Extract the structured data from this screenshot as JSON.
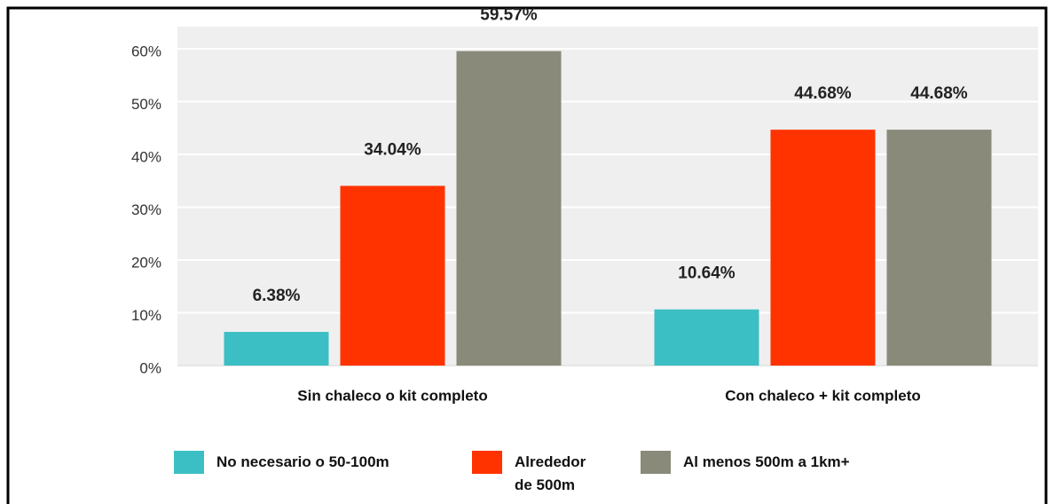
{
  "chart_data": {
    "type": "bar",
    "categories": [
      "Sin chaleco o kit completo",
      "Con chaleco + kit completo"
    ],
    "series": [
      {
        "name": "No necesario o 50-100m",
        "color": "#3cbfc4",
        "values": [
          6.38,
          10.64
        ],
        "value_labels": [
          "6.38%",
          "10.64%"
        ]
      },
      {
        "name": "Alrededor de 500m",
        "color": "#ff3300",
        "values": [
          34.04,
          44.68
        ],
        "value_labels": [
          "34.04%",
          "44.68%"
        ]
      },
      {
        "name": "Al menos 500m a 1km+",
        "color": "#8a8a7a",
        "values": [
          59.57,
          44.68
        ],
        "value_labels": [
          "59.57%",
          "44.68%"
        ]
      }
    ],
    "ylim": [
      0,
      60
    ],
    "yticks": [
      {
        "value": 0,
        "label": "0%"
      },
      {
        "value": 10,
        "label": "10%"
      },
      {
        "value": 20,
        "label": "20%"
      },
      {
        "value": 30,
        "label": "30%"
      },
      {
        "value": 40,
        "label": "40%"
      },
      {
        "value": 50,
        "label": "50%"
      },
      {
        "value": 60,
        "label": "60%"
      }
    ],
    "grid": true
  }
}
